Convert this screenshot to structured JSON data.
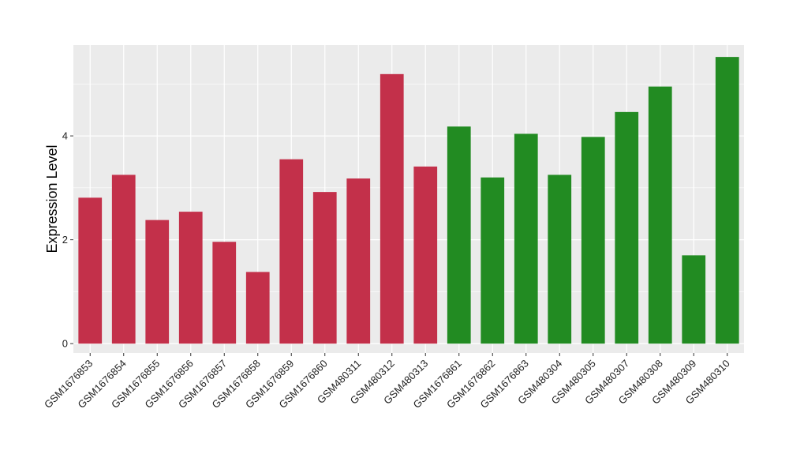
{
  "chart_data": {
    "type": "bar",
    "title": "",
    "xlabel": "",
    "ylabel": "Expression Level",
    "ylim": [
      -0.18,
      5.75
    ],
    "yticks": [
      0,
      2,
      4
    ],
    "grid": true,
    "legend": "none",
    "panel_background": "#EBEBEB",
    "gridline_color": "#FFFFFF",
    "categories": [
      "GSM1676853",
      "GSM1676854",
      "GSM1676855",
      "GSM1676856",
      "GSM1676857",
      "GSM1676858",
      "GSM1676859",
      "GSM1676860",
      "GSM480311",
      "GSM480312",
      "GSM480313",
      "GSM1676861",
      "GSM1676862",
      "GSM1676863",
      "GSM480304",
      "GSM480305",
      "GSM480307",
      "GSM480308",
      "GSM480309",
      "GSM480310"
    ],
    "values": [
      2.81,
      3.25,
      2.38,
      2.54,
      1.96,
      1.38,
      3.55,
      2.92,
      3.18,
      5.19,
      3.41,
      4.18,
      3.2,
      4.04,
      3.25,
      3.98,
      4.46,
      4.95,
      1.7,
      5.52
    ],
    "bar_colors": [
      "#C3304A",
      "#C3304A",
      "#C3304A",
      "#C3304A",
      "#C3304A",
      "#C3304A",
      "#C3304A",
      "#C3304A",
      "#C3304A",
      "#C3304A",
      "#C3304A",
      "#228B22",
      "#228B22",
      "#228B22",
      "#228B22",
      "#228B22",
      "#228B22",
      "#228B22",
      "#228B22",
      "#228B22"
    ]
  }
}
